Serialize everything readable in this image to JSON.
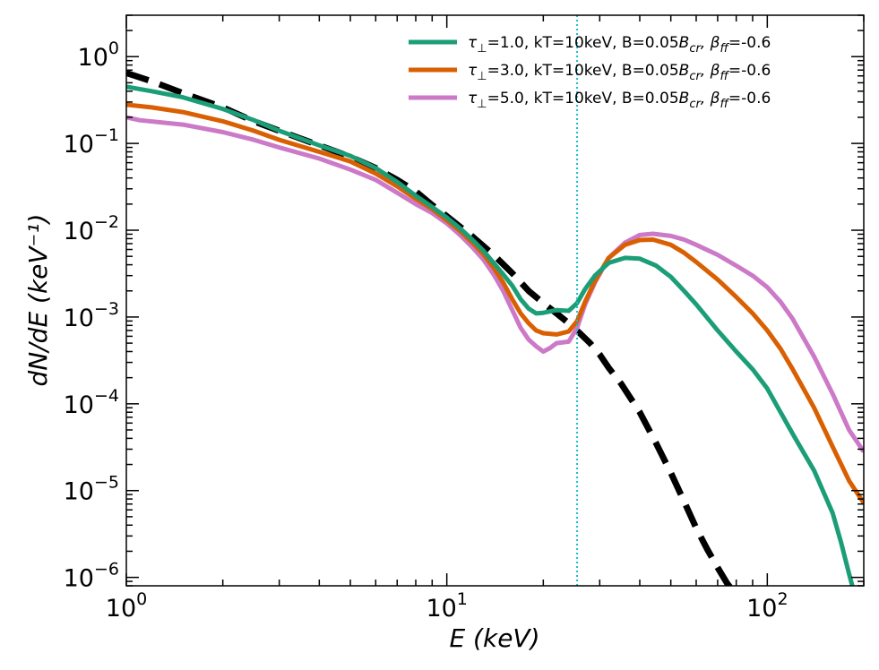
{
  "chart_data": {
    "type": "line",
    "x_scale": "log",
    "y_scale": "log",
    "xlim": [
      1,
      200
    ],
    "ylim": [
      8e-07,
      3
    ],
    "xlabel": "E (keV)",
    "ylabel": "dN/dE (keV⁻¹)",
    "x_ticks": [
      {
        "base": "10",
        "exp": "0",
        "value": 1
      },
      {
        "base": "10",
        "exp": "1",
        "value": 10
      },
      {
        "base": "10",
        "exp": "2",
        "value": 100
      }
    ],
    "y_ticks": [
      {
        "base": "10",
        "exp": "0",
        "value": 1
      },
      {
        "base": "10",
        "exp": "−1",
        "value": 0.1
      },
      {
        "base": "10",
        "exp": "−2",
        "value": 0.01
      },
      {
        "base": "10",
        "exp": "−3",
        "value": 0.001
      },
      {
        "base": "10",
        "exp": "−4",
        "value": 0.0001
      },
      {
        "base": "10",
        "exp": "−5",
        "value": 1e-05
      },
      {
        "base": "10",
        "exp": "−6",
        "value": 1e-06
      }
    ],
    "legend_position": "top-right",
    "vline": {
      "x": 25.5,
      "color": "#17becf",
      "style": "dotted"
    },
    "series": [
      {
        "label": "τ⊥=1.0, kT=10keV, B=0.05Bcr, βff=-0.6",
        "legend": {
          "tau": "τ",
          "perp": "⊥",
          "rest": "=1.0, kT=10keV, B=0.05",
          "b": "B",
          "cr": "cr",
          "beta": ", β",
          "ff": "ff",
          "tail": "=-0.6"
        },
        "color": "#1b9e77",
        "points": [
          [
            1.0,
            0.45
          ],
          [
            1.2,
            0.4
          ],
          [
            1.5,
            0.34
          ],
          [
            2,
            0.25
          ],
          [
            2.5,
            0.185
          ],
          [
            3,
            0.14
          ],
          [
            4,
            0.095
          ],
          [
            5,
            0.072
          ],
          [
            6,
            0.052
          ],
          [
            7,
            0.036
          ],
          [
            8,
            0.025
          ],
          [
            9,
            0.0185
          ],
          [
            10,
            0.014
          ],
          [
            11,
            0.0105
          ],
          [
            12,
            0.0078
          ],
          [
            13,
            0.0058
          ],
          [
            14,
            0.0042
          ],
          [
            15,
            0.0031
          ],
          [
            16,
            0.0023
          ],
          [
            17,
            0.0016
          ],
          [
            18,
            0.00125
          ],
          [
            19,
            0.0011
          ],
          [
            20,
            0.00112
          ],
          [
            22,
            0.0012
          ],
          [
            24,
            0.00118
          ],
          [
            25.5,
            0.00145
          ],
          [
            27,
            0.0021
          ],
          [
            29,
            0.003
          ],
          [
            32,
            0.0042
          ],
          [
            36,
            0.0048
          ],
          [
            40,
            0.0047
          ],
          [
            45,
            0.0039
          ],
          [
            50,
            0.0029
          ],
          [
            55,
            0.002
          ],
          [
            60,
            0.0014
          ],
          [
            70,
            0.0007
          ],
          [
            80,
            0.0004
          ],
          [
            90,
            0.00025
          ],
          [
            100,
            0.00015
          ],
          [
            110,
            8e-05
          ],
          [
            120,
            4.5e-05
          ],
          [
            140,
            1.7e-05
          ],
          [
            160,
            5.5e-06
          ],
          [
            170,
            2.5e-06
          ],
          [
            180,
            1.1e-06
          ],
          [
            186,
            7e-07
          ]
        ]
      },
      {
        "label": "τ⊥=3.0, kT=10keV, B=0.05Bcr, βff=-0.6",
        "legend": {
          "tau": "τ",
          "perp": "⊥",
          "rest": "=3.0, kT=10keV, B=0.05",
          "b": "B",
          "cr": "cr",
          "beta": ", β",
          "ff": "ff",
          "tail": "=-0.6"
        },
        "color": "#d95f02",
        "points": [
          [
            1.0,
            0.28
          ],
          [
            1.2,
            0.26
          ],
          [
            1.5,
            0.23
          ],
          [
            2,
            0.18
          ],
          [
            2.5,
            0.14
          ],
          [
            3,
            0.11
          ],
          [
            4,
            0.08
          ],
          [
            5,
            0.062
          ],
          [
            6,
            0.045
          ],
          [
            7,
            0.032
          ],
          [
            8,
            0.023
          ],
          [
            9,
            0.0175
          ],
          [
            10,
            0.013
          ],
          [
            11,
            0.0098
          ],
          [
            12,
            0.0072
          ],
          [
            13,
            0.0053
          ],
          [
            14,
            0.0037
          ],
          [
            15,
            0.0025
          ],
          [
            16,
            0.0016
          ],
          [
            17,
            0.0011
          ],
          [
            18,
            0.00085
          ],
          [
            19,
            0.0007
          ],
          [
            20,
            0.00065
          ],
          [
            22,
            0.00063
          ],
          [
            24,
            0.00068
          ],
          [
            25.5,
            0.0009
          ],
          [
            27,
            0.0015
          ],
          [
            29,
            0.0026
          ],
          [
            32,
            0.0048
          ],
          [
            36,
            0.0068
          ],
          [
            40,
            0.0077
          ],
          [
            44,
            0.0078
          ],
          [
            50,
            0.0068
          ],
          [
            55,
            0.0055
          ],
          [
            60,
            0.0043
          ],
          [
            70,
            0.0027
          ],
          [
            80,
            0.0017
          ],
          [
            90,
            0.0011
          ],
          [
            100,
            0.0007
          ],
          [
            110,
            0.00043
          ],
          [
            120,
            0.00025
          ],
          [
            140,
            9e-05
          ],
          [
            160,
            3.2e-05
          ],
          [
            180,
            1.3e-05
          ],
          [
            200,
            7.2e-06
          ]
        ]
      },
      {
        "label": "τ⊥=5.0, kT=10keV, B=0.05Bcr, βff=-0.6",
        "legend": {
          "tau": "τ",
          "perp": "⊥",
          "rest": "=5.0, kT=10keV, B=0.05",
          "b": "B",
          "cr": "cr",
          "beta": ", β",
          "ff": "ff",
          "tail": "=-0.6"
        },
        "color": "#cc79c7",
        "points": [
          [
            1.0,
            0.2
          ],
          [
            1.1,
            0.185
          ],
          [
            1.5,
            0.165
          ],
          [
            2,
            0.135
          ],
          [
            2.5,
            0.11
          ],
          [
            3,
            0.09
          ],
          [
            4,
            0.067
          ],
          [
            5,
            0.05
          ],
          [
            6,
            0.038
          ],
          [
            7,
            0.027
          ],
          [
            8,
            0.02
          ],
          [
            9,
            0.0158
          ],
          [
            10,
            0.012
          ],
          [
            11,
            0.0088
          ],
          [
            12,
            0.0064
          ],
          [
            13,
            0.0046
          ],
          [
            14,
            0.0031
          ],
          [
            15,
            0.002
          ],
          [
            16,
            0.0012
          ],
          [
            17,
            0.00075
          ],
          [
            18,
            0.00055
          ],
          [
            19,
            0.00046
          ],
          [
            20,
            0.0004
          ],
          [
            21,
            0.00044
          ],
          [
            22,
            0.0005
          ],
          [
            24,
            0.00052
          ],
          [
            25.5,
            0.00075
          ],
          [
            27,
            0.0014
          ],
          [
            29,
            0.0025
          ],
          [
            32,
            0.0048
          ],
          [
            36,
            0.0072
          ],
          [
            40,
            0.0088
          ],
          [
            44,
            0.0091
          ],
          [
            50,
            0.0086
          ],
          [
            55,
            0.0078
          ],
          [
            60,
            0.0068
          ],
          [
            70,
            0.0052
          ],
          [
            80,
            0.0039
          ],
          [
            90,
            0.003
          ],
          [
            100,
            0.0022
          ],
          [
            110,
            0.0015
          ],
          [
            120,
            0.00095
          ],
          [
            140,
            0.00035
          ],
          [
            160,
            0.00013
          ],
          [
            180,
            5e-05
          ],
          [
            200,
            2.8e-05
          ]
        ]
      },
      {
        "label": "",
        "color": "#000000",
        "dashed": true,
        "points": [
          [
            1.0,
            0.65
          ],
          [
            1.2,
            0.52
          ],
          [
            1.5,
            0.38
          ],
          [
            2,
            0.26
          ],
          [
            2.5,
            0.18
          ],
          [
            3,
            0.14
          ],
          [
            4,
            0.095
          ],
          [
            5,
            0.07
          ],
          [
            6,
            0.052
          ],
          [
            7,
            0.038
          ],
          [
            8,
            0.028
          ],
          [
            9,
            0.0195
          ],
          [
            10,
            0.0145
          ],
          [
            12,
            0.0085
          ],
          [
            14,
            0.0052
          ],
          [
            16,
            0.0032
          ],
          [
            18,
            0.002
          ],
          [
            20,
            0.00145
          ],
          [
            22,
            0.0011
          ],
          [
            24,
            0.00085
          ],
          [
            26,
            0.00065
          ],
          [
            28,
            0.0005
          ],
          [
            30,
            0.00037
          ],
          [
            32,
            0.00026
          ],
          [
            35,
            0.00017
          ],
          [
            40,
            8e-05
          ],
          [
            45,
            3.5e-05
          ],
          [
            50,
            1.6e-05
          ],
          [
            55,
            7.5e-06
          ],
          [
            60,
            3.7e-06
          ],
          [
            65,
            2.1e-06
          ],
          [
            70,
            1.3e-06
          ],
          [
            75,
            8.5e-07
          ],
          [
            77,
            7.5e-07
          ]
        ]
      }
    ]
  }
}
